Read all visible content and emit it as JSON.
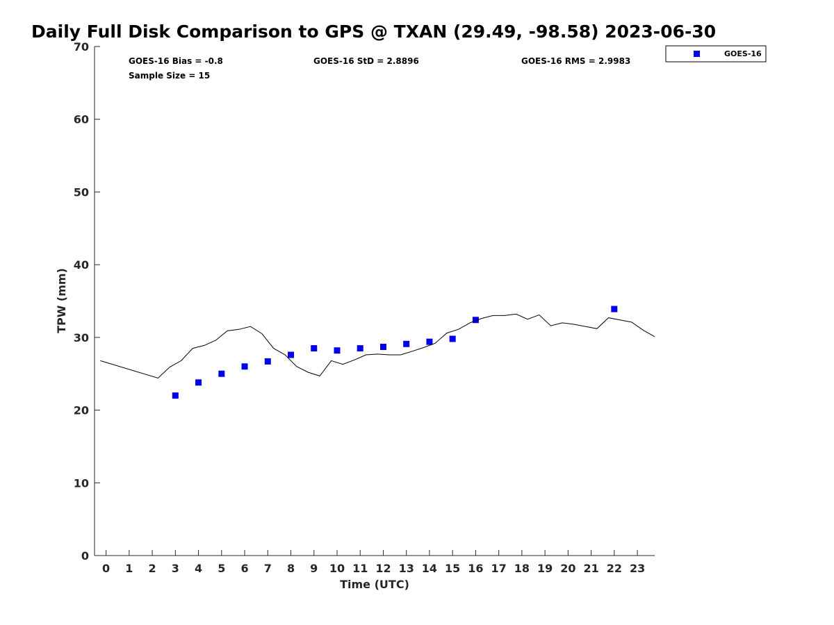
{
  "chart_data": {
    "type": "scatter",
    "title": "Daily Full Disk Comparison to GPS @ TXAN (29.49, -98.58) 2023-06-30",
    "xlabel": "Time (UTC)",
    "ylabel": "TPW (mm)",
    "xlim": [
      -0.5,
      23.75
    ],
    "ylim": [
      0,
      70
    ],
    "x_ticks": [
      0,
      1,
      2,
      3,
      4,
      5,
      6,
      7,
      8,
      9,
      10,
      11,
      12,
      13,
      14,
      15,
      16,
      17,
      18,
      19,
      20,
      21,
      22,
      23
    ],
    "y_ticks": [
      0,
      10,
      20,
      30,
      40,
      50,
      60,
      70
    ],
    "grid": false,
    "legend_position": "top-right",
    "stats": {
      "bias": "GOES-16 Bias = -0.8",
      "sample_size": "Sample Size = 15",
      "std": "GOES-16 StD = 2.8896",
      "rms": "GOES-16 RMS = 2.9983"
    },
    "series": [
      {
        "name": "GOES-16",
        "kind": "scatter",
        "color": "#0000ee",
        "x": [
          3,
          4,
          5,
          6,
          7,
          8,
          9,
          10,
          11,
          12,
          13,
          14,
          15,
          16,
          22
        ],
        "y": [
          22.0,
          23.8,
          25.0,
          26.0,
          26.7,
          27.6,
          28.5,
          28.2,
          28.5,
          28.7,
          29.1,
          29.4,
          29.8,
          32.4,
          33.9
        ]
      },
      {
        "kind": "line",
        "color": "#000000",
        "x": [
          -0.25,
          2.25,
          2.75,
          3.25,
          3.75,
          4.25,
          4.75,
          5.25,
          5.75,
          6.25,
          6.75,
          7.25,
          7.75,
          8.25,
          8.75,
          9.25,
          9.75,
          10.25,
          10.75,
          11.25,
          11.75,
          12.25,
          12.75,
          13.25,
          13.75,
          14.25,
          14.75,
          15.25,
          15.75,
          16.25,
          16.75,
          17.25,
          17.75,
          18.25,
          18.75,
          19.25,
          19.75,
          20.25,
          20.75,
          21.25,
          21.75,
          22.25,
          22.75,
          23.25,
          23.75
        ],
        "y": [
          26.8,
          24.4,
          25.9,
          26.8,
          28.5,
          28.9,
          29.6,
          30.9,
          31.1,
          31.5,
          30.5,
          28.5,
          27.6,
          26.0,
          25.2,
          24.7,
          26.8,
          26.3,
          26.9,
          27.6,
          27.7,
          27.6,
          27.6,
          28.1,
          28.6,
          29.2,
          30.6,
          31.1,
          32.0,
          32.6,
          33.0,
          33.0,
          33.2,
          32.5,
          33.1,
          31.6,
          32.0,
          31.8,
          31.5,
          31.2,
          32.7,
          32.4,
          32.1,
          31.0,
          30.1
        ]
      }
    ]
  }
}
